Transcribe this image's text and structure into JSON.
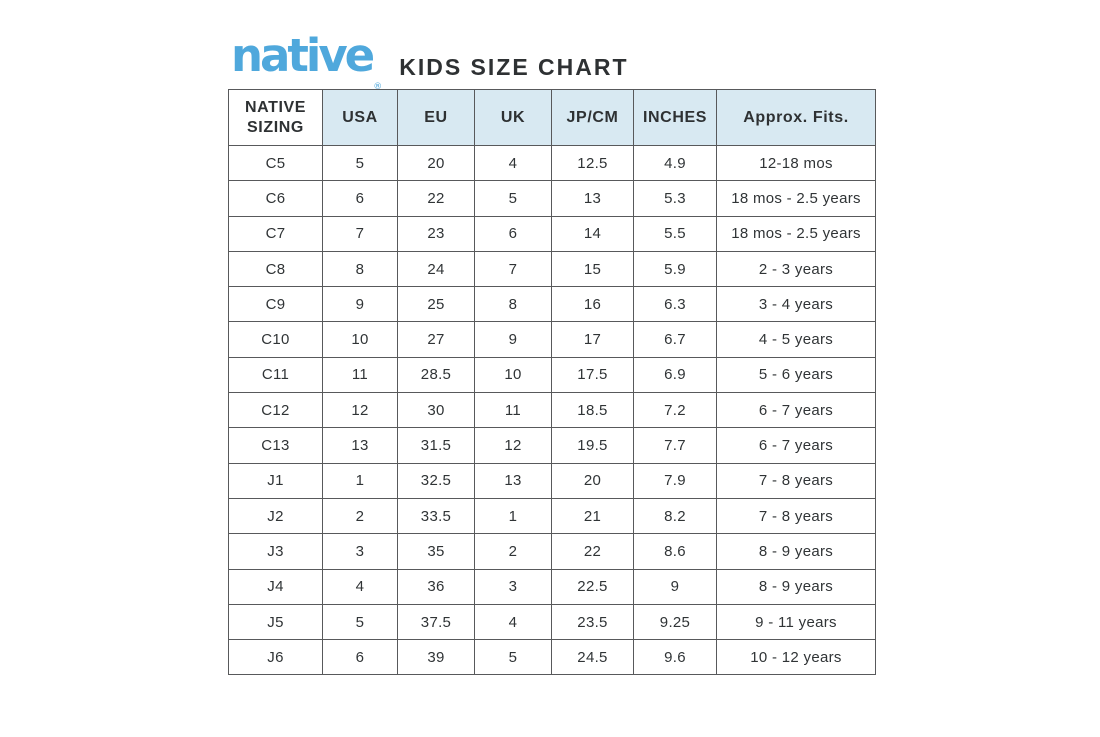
{
  "header": {
    "logo_text": "native",
    "logo_trademark": "®",
    "title": "KIDS SIZE CHART"
  },
  "colors": {
    "logo_blue": "#4FA8DC",
    "header_cell_bg": "#D8E9F2",
    "table_border": "#58595B",
    "text_dark": "#2F3234"
  },
  "table": {
    "columns": [
      "NATIVE SIZING",
      "USA",
      "EU",
      "UK",
      "JP/CM",
      "INCHES",
      "Approx. Fits."
    ],
    "rows": [
      [
        "C5",
        "5",
        "20",
        "4",
        "12.5",
        "4.9",
        "12-18 mos"
      ],
      [
        "C6",
        "6",
        "22",
        "5",
        "13",
        "5.3",
        "18 mos - 2.5 years"
      ],
      [
        "C7",
        "7",
        "23",
        "6",
        "14",
        "5.5",
        "18 mos - 2.5 years"
      ],
      [
        "C8",
        "8",
        "24",
        "7",
        "15",
        "5.9",
        "2 - 3 years"
      ],
      [
        "C9",
        "9",
        "25",
        "8",
        "16",
        "6.3",
        "3 - 4 years"
      ],
      [
        "C10",
        "10",
        "27",
        "9",
        "17",
        "6.7",
        "4 - 5 years"
      ],
      [
        "C11",
        "11",
        "28.5",
        "10",
        "17.5",
        "6.9",
        "5 - 6 years"
      ],
      [
        "C12",
        "12",
        "30",
        "11",
        "18.5",
        "7.2",
        "6 - 7 years"
      ],
      [
        "C13",
        "13",
        "31.5",
        "12",
        "19.5",
        "7.7",
        "6 - 7 years"
      ],
      [
        "J1",
        "1",
        "32.5",
        "13",
        "20",
        "7.9",
        "7 - 8 years"
      ],
      [
        "J2",
        "2",
        "33.5",
        "1",
        "21",
        "8.2",
        "7 - 8 years"
      ],
      [
        "J3",
        "3",
        "35",
        "2",
        "22",
        "8.6",
        "8 - 9 years"
      ],
      [
        "J4",
        "4",
        "36",
        "3",
        "22.5",
        "9",
        "8 - 9 years"
      ],
      [
        "J5",
        "5",
        "37.5",
        "4",
        "23.5",
        "9.25",
        "9 - 11 years"
      ],
      [
        "J6",
        "6",
        "39",
        "5",
        "24.5",
        "9.6",
        "10 - 12 years"
      ]
    ]
  },
  "chart_data": {
    "type": "table",
    "title": "native KIDS SIZE CHART",
    "columns": [
      "NATIVE SIZING",
      "USA",
      "EU",
      "UK",
      "JP/CM",
      "INCHES",
      "Approx. Fits."
    ],
    "rows": [
      [
        "C5",
        "5",
        "20",
        "4",
        "12.5",
        "4.9",
        "12-18 mos"
      ],
      [
        "C6",
        "6",
        "22",
        "5",
        "13",
        "5.3",
        "18 mos - 2.5 years"
      ],
      [
        "C7",
        "7",
        "23",
        "6",
        "14",
        "5.5",
        "18 mos - 2.5 years"
      ],
      [
        "C8",
        "8",
        "24",
        "7",
        "15",
        "5.9",
        "2 - 3 years"
      ],
      [
        "C9",
        "9",
        "25",
        "8",
        "16",
        "6.3",
        "3 - 4 years"
      ],
      [
        "C10",
        "10",
        "27",
        "9",
        "17",
        "6.7",
        "4 - 5 years"
      ],
      [
        "C11",
        "11",
        "28.5",
        "10",
        "17.5",
        "6.9",
        "5 - 6 years"
      ],
      [
        "C12",
        "12",
        "30",
        "11",
        "18.5",
        "7.2",
        "6 - 7 years"
      ],
      [
        "C13",
        "13",
        "31.5",
        "12",
        "19.5",
        "7.7",
        "6 - 7 years"
      ],
      [
        "J1",
        "1",
        "32.5",
        "13",
        "20",
        "7.9",
        "7 - 8 years"
      ],
      [
        "J2",
        "2",
        "33.5",
        "1",
        "21",
        "8.2",
        "7 - 8 years"
      ],
      [
        "J3",
        "3",
        "35",
        "2",
        "22",
        "8.6",
        "8 - 9 years"
      ],
      [
        "J4",
        "4",
        "36",
        "3",
        "22.5",
        "9",
        "8 - 9 years"
      ],
      [
        "J5",
        "5",
        "37.5",
        "4",
        "23.5",
        "9.25",
        "9 - 11 years"
      ],
      [
        "J6",
        "6",
        "39",
        "5",
        "24.5",
        "9.6",
        "10 - 12 years"
      ]
    ]
  }
}
